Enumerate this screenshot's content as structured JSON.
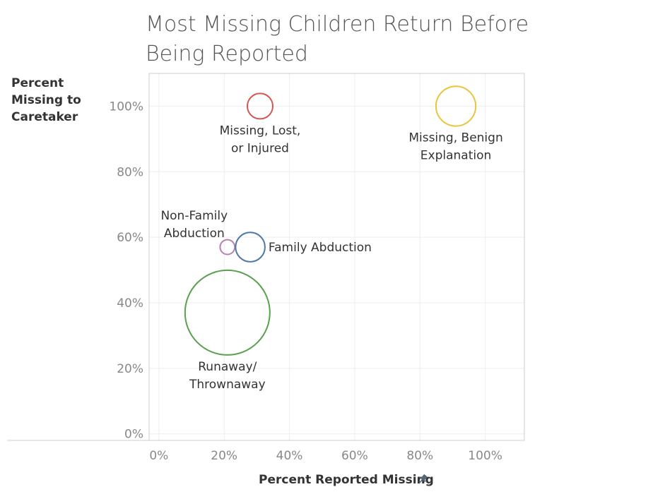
{
  "chart_data": {
    "type": "scatter",
    "title": "Most Missing Children Return Before Being Reported",
    "xlabel": "Percent Reported Missing",
    "ylabel": "Percent Missing to Caretaker",
    "xlim": [
      -0.03,
      1.12
    ],
    "ylim": [
      -0.02,
      1.1
    ],
    "xticks": [
      {
        "v": 0.0,
        "label": "0%"
      },
      {
        "v": 0.2,
        "label": "20%"
      },
      {
        "v": 0.4,
        "label": "40%"
      },
      {
        "v": 0.6,
        "label": "60%"
      },
      {
        "v": 0.8,
        "label": "80%"
      },
      {
        "v": 1.0,
        "label": "100%"
      }
    ],
    "yticks": [
      {
        "v": 0.0,
        "label": "0%"
      },
      {
        "v": 0.2,
        "label": "20%"
      },
      {
        "v": 0.4,
        "label": "40%"
      },
      {
        "v": 0.6,
        "label": "60%"
      },
      {
        "v": 0.8,
        "label": "80%"
      },
      {
        "v": 1.0,
        "label": "100%"
      }
    ],
    "grid": true,
    "size_encoding": "bubble area",
    "points": [
      {
        "label_lines": [
          "Missing, Lost,",
          "or Injured"
        ],
        "x": 0.31,
        "y": 1.0,
        "size": 0.09,
        "color": "#d9534f",
        "label_pos": "below"
      },
      {
        "label_lines": [
          "Missing, Benign",
          "Explanation"
        ],
        "x": 0.91,
        "y": 1.0,
        "size": 0.22,
        "color": "#e8c53a",
        "label_pos": "below"
      },
      {
        "label_lines": [
          "Non-Family",
          "Abduction"
        ],
        "x": 0.21,
        "y": 0.57,
        "size": 0.03,
        "color": "#b97fb4",
        "label_pos": "above-left"
      },
      {
        "label_lines": [
          "Family Abduction"
        ],
        "x": 0.28,
        "y": 0.57,
        "size": 0.12,
        "color": "#4e79a7",
        "label_pos": "right"
      },
      {
        "label_lines": [
          "Runaway/",
          "Thrownaway"
        ],
        "x": 0.21,
        "y": 0.37,
        "size": 1.0,
        "color": "#59a14f",
        "label_pos": "below"
      }
    ]
  }
}
